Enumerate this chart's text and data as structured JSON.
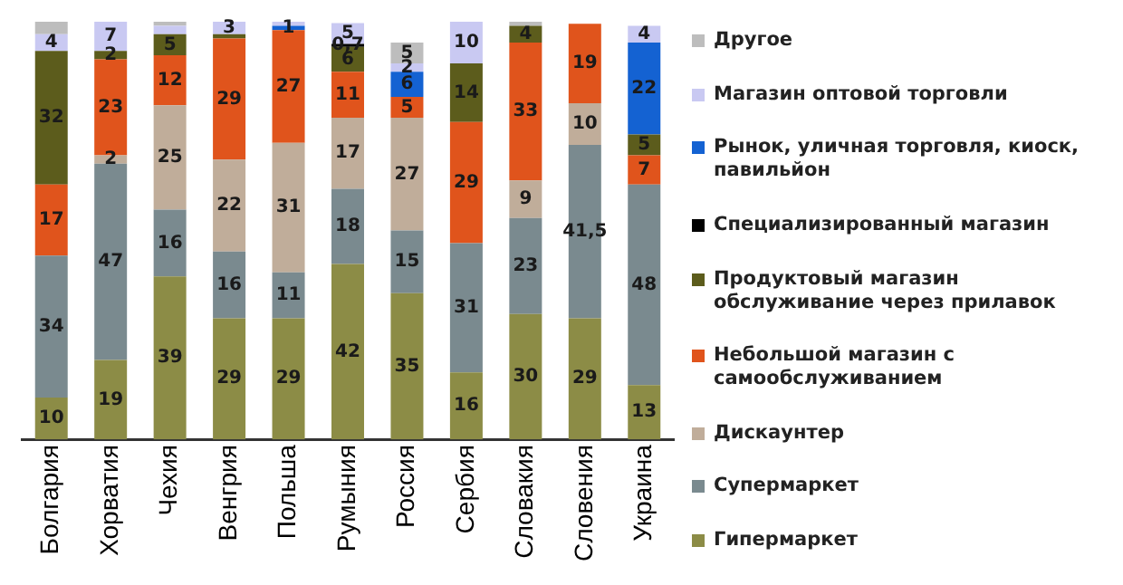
{
  "chart_data": {
    "type": "bar",
    "stacked": true,
    "legend": "right",
    "tick_labels": "x",
    "ylim": [
      0,
      100
    ],
    "grid": false,
    "categories": [
      "Болгария",
      "Хорватия",
      "Чехия",
      "Венгрия",
      "Польша",
      "Румыния",
      "Россия",
      "Сербия",
      "Словакия",
      "Словения",
      "Украина"
    ],
    "series": [
      {
        "name": "Гипермаркет",
        "color": "#8c8c46",
        "values": [
          10,
          19,
          39,
          29,
          29,
          42,
          35,
          16,
          30,
          29,
          13
        ],
        "value_labels": [
          "10",
          "19",
          "39",
          "29",
          "29",
          "42",
          "35",
          "16",
          "30",
          "29",
          "13"
        ]
      },
      {
        "name": "Супермаркет",
        "color": "#7a8a8f",
        "values": [
          34,
          47,
          16,
          16,
          11,
          18,
          15,
          31,
          23,
          41.5,
          48
        ],
        "value_labels": [
          "34",
          "47",
          "16",
          "16",
          "11",
          "18",
          "15",
          "31",
          "23",
          "41,5",
          "48"
        ]
      },
      {
        "name": "Дискаунтер",
        "color": "#c0ad9a",
        "values": [
          0,
          2,
          25,
          22,
          31,
          17,
          27,
          0,
          9,
          10,
          0
        ],
        "value_labels": [
          null,
          "2",
          "25",
          "22",
          "31",
          "17",
          "27",
          null,
          "9",
          "10",
          null
        ]
      },
      {
        "name": "Небольшой магазин с самообслуживанием",
        "color": "#e0541c",
        "values": [
          17,
          23,
          12,
          29,
          27,
          11,
          5,
          29,
          33,
          19,
          7
        ],
        "value_labels": [
          "17",
          "23",
          "12",
          "29",
          "27",
          "11",
          "5",
          "29",
          "33",
          "19",
          "7"
        ]
      },
      {
        "name": "Продуктовый магазин обслуживание через прилавок",
        "color": "#5c5c1c",
        "values": [
          32,
          2,
          5,
          1,
          0,
          6,
          0,
          14,
          4,
          0,
          5
        ],
        "value_labels": [
          "32",
          "2",
          "5",
          null,
          null,
          "6",
          null,
          "14",
          "4",
          null,
          "5"
        ]
      },
      {
        "name": "Специализированный магазин",
        "color": "#000000",
        "values": [
          0,
          0,
          0,
          0,
          0,
          0.7,
          0,
          0,
          0,
          0,
          0
        ],
        "value_labels": [
          null,
          null,
          null,
          null,
          null,
          "0,7",
          null,
          null,
          null,
          null,
          null
        ]
      },
      {
        "name": "Рынок, уличная торговля, киоск, павильйон",
        "color": "#1462d2",
        "values": [
          0,
          0,
          0,
          0,
          1,
          0,
          6,
          0,
          0,
          0,
          22
        ],
        "value_labels": [
          null,
          null,
          null,
          null,
          "1",
          null,
          "6",
          null,
          null,
          null,
          "22"
        ]
      },
      {
        "name": "Магазин оптовой торговли",
        "color": "#c9c9f2",
        "values": [
          4,
          7,
          2,
          3,
          1,
          5,
          2,
          10,
          0,
          0,
          4
        ],
        "value_labels": [
          "4",
          "7",
          null,
          "3",
          null,
          "5",
          "2",
          "10",
          null,
          null,
          "4"
        ]
      },
      {
        "name": "Другое",
        "color": "#bdbdbd",
        "values": [
          3,
          0,
          1,
          0,
          0,
          0,
          5,
          0,
          1,
          0,
          0
        ],
        "value_labels": [
          null,
          null,
          null,
          null,
          null,
          null,
          "5",
          null,
          null,
          null,
          null
        ]
      }
    ]
  }
}
